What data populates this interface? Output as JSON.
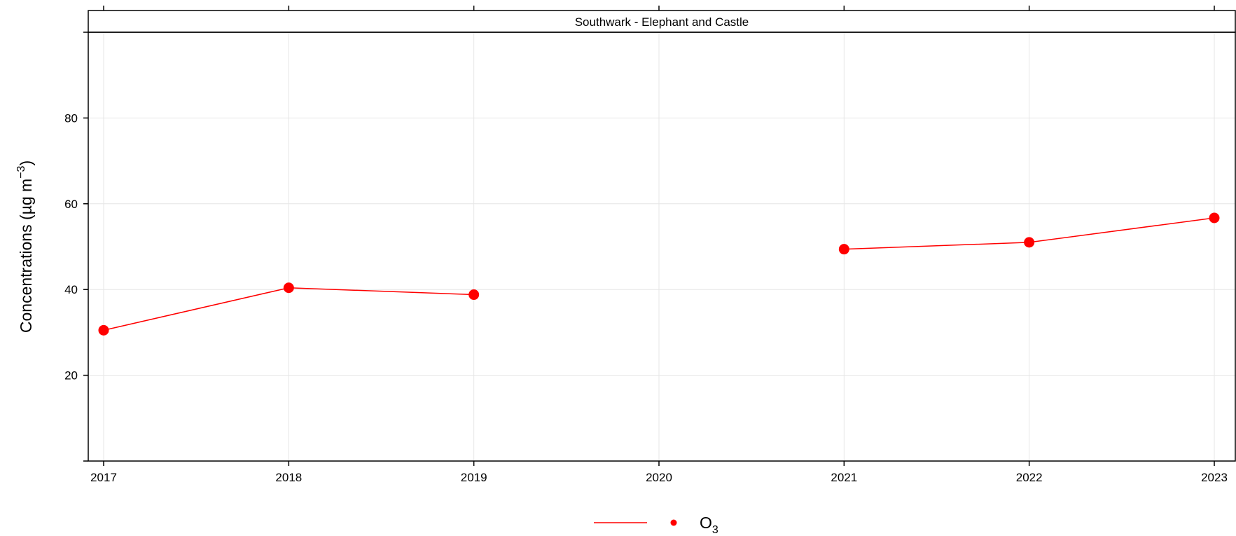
{
  "chart_data": {
    "type": "line",
    "title": "Southwark - Elephant and Castle",
    "ylabel": {
      "main": "Concentrations (µg m",
      "superscript": "−3",
      "close": ")"
    },
    "xlim": [
      2017,
      2023
    ],
    "ylim": [
      0,
      100
    ],
    "x_ticks": [
      2017,
      2018,
      2019,
      2020,
      2021,
      2022,
      2023
    ],
    "x_tick_labels": [
      "2017",
      "2018",
      "2019",
      "2020",
      "2021",
      "2022",
      "2023"
    ],
    "y_ticks": [
      20,
      40,
      60,
      80
    ],
    "y_tick_labels": [
      "20",
      "40",
      "60",
      "80"
    ],
    "grid": true,
    "legend_position": "bottom",
    "series": [
      {
        "name": "O3",
        "legend_label": {
          "main": "O",
          "subscript": "3"
        },
        "color": "#ff0000",
        "points": [
          {
            "x": 2017,
            "y": 30.5
          },
          {
            "x": 2018,
            "y": 40.4
          },
          {
            "x": 2019,
            "y": 38.8
          },
          {
            "x": 2020,
            "y": null
          },
          {
            "x": 2021,
            "y": 49.4
          },
          {
            "x": 2022,
            "y": 51.0
          },
          {
            "x": 2023,
            "y": 56.7
          }
        ]
      }
    ]
  }
}
